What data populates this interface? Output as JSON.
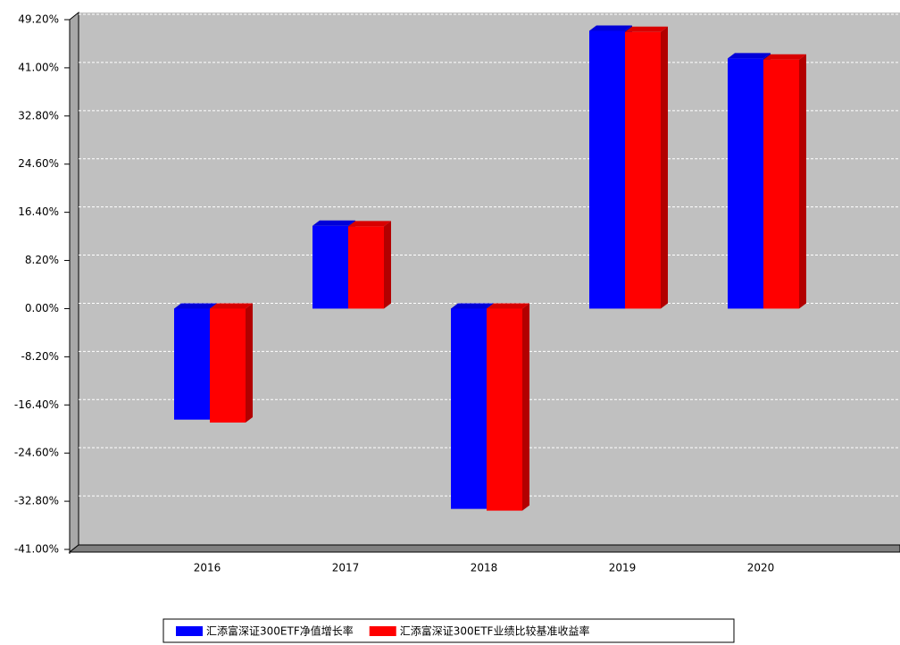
{
  "chart_data": {
    "type": "bar",
    "categories": [
      "2016",
      "2017",
      "2018",
      "2019",
      "2020"
    ],
    "series": [
      {
        "name": "汇添富深证300ETF净值增长率",
        "color": "#0000ff",
        "values": [
          -18.9,
          14.1,
          -34.1,
          47.3,
          42.6
        ]
      },
      {
        "name": "汇添富深证300ETF业绩比较基准收益率",
        "color": "#ff0000",
        "values": [
          -19.4,
          14.0,
          -34.4,
          47.1,
          42.4
        ]
      }
    ],
    "ylim": [
      -41,
      49.2
    ],
    "yticks": [
      {
        "value": -41,
        "label": "-41.00%"
      },
      {
        "value": -32.8,
        "label": "-32.80%"
      },
      {
        "value": -24.6,
        "label": "-24.60%"
      },
      {
        "value": -16.4,
        "label": "-16.40%"
      },
      {
        "value": -8.2,
        "label": "-8.20%"
      },
      {
        "value": 0,
        "label": "0.00%"
      },
      {
        "value": 8.2,
        "label": "8.20%"
      },
      {
        "value": 16.4,
        "label": "16.40%"
      },
      {
        "value": 24.6,
        "label": "24.60%"
      },
      {
        "value": 32.8,
        "label": "32.80%"
      },
      {
        "value": 41,
        "label": "41.00%"
      },
      {
        "value": 49.2,
        "label": "49.20%"
      }
    ],
    "grid": true,
    "legend": "bottom"
  }
}
